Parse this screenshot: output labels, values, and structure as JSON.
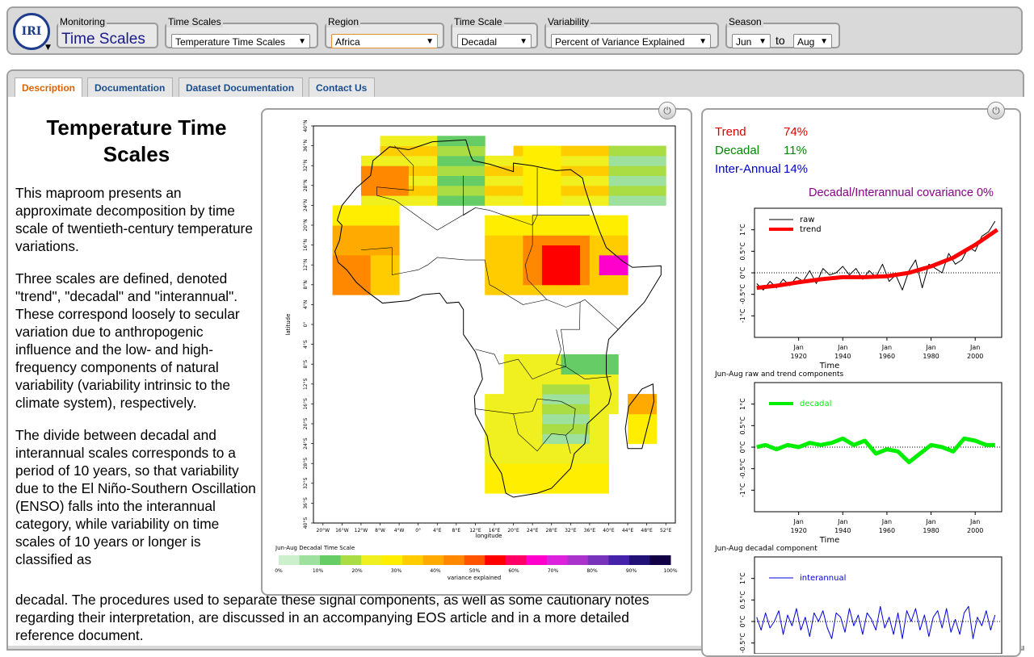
{
  "topbar": {
    "logo_text": "IRI",
    "monitoring": {
      "label": "Monitoring",
      "value": "Time Scales"
    },
    "timescales": {
      "label": "Time Scales",
      "value": "Temperature Time Scales"
    },
    "region": {
      "label": "Region",
      "value": "Africa"
    },
    "timescale": {
      "label": "Time Scale",
      "value": "Decadal"
    },
    "variability": {
      "label": "Variability",
      "value": "Percent of Variance Explained"
    },
    "season": {
      "label": "Season",
      "from": "Jun",
      "to_text": "to",
      "to": "Aug"
    }
  },
  "tabs": [
    "Description",
    "Documentation",
    "Dataset Documentation",
    "Contact Us"
  ],
  "description": {
    "title": "Temperature Time Scales",
    "p1": "This maproom presents an approximate decomposition by time scale of twentieth-century temperature variations.",
    "p2": "Three scales are defined, denoted \"trend\", \"decadal\" and \"interannual\". These correspond loosely to secular variation due to anthropogenic influence and the low- and high-frequency components of natural variability (variability intrinsic to the climate system), respectively.",
    "p3": "The divide between decadal and interannual scales corresponds to a period of 10 years, so that variability due to the El Niño-Southern Oscillation (ENSO) falls into the interannual category, while variability on time scales of 10 years or longer is classified as",
    "p3b": "decadal. The procedures used to separate these signal components, as well as some cautionary notes regarding their interpretation, are discussed in an accompanying EOS article and in a more detailed reference document."
  },
  "map": {
    "ylabel": "latitude",
    "xlabel": "longitude",
    "lat_ticks": [
      "40°N",
      "36°N",
      "32°N",
      "28°N",
      "24°N",
      "20°N",
      "16°N",
      "12°N",
      "8°N",
      "4°N",
      "0°",
      "4°S",
      "8°S",
      "12°S",
      "16°S",
      "20°S",
      "24°S",
      "28°S",
      "32°S",
      "36°S",
      "40°S"
    ],
    "lon_ticks": [
      "20°W",
      "16°W",
      "12°W",
      "8°W",
      "4°W",
      "0°",
      "4°E",
      "8°E",
      "12°E",
      "16°E",
      "20°E",
      "24°E",
      "28°E",
      "32°E",
      "36°E",
      "40°E",
      "44°E",
      "48°E",
      "52°E"
    ],
    "colorbar_title": "Jun-Aug Decadal Time Scale",
    "colorbar_ticks": [
      "0%",
      "10%",
      "20%",
      "30%",
      "40%",
      "50%",
      "60%",
      "70%",
      "80%",
      "90%",
      "100%"
    ],
    "colorbar_label": "variance explained",
    "colors": [
      "#ccf0cc",
      "#9ee09e",
      "#66cc66",
      "#aadd44",
      "#f0f020",
      "#ffee00",
      "#ffcc00",
      "#ffaa00",
      "#ff8800",
      "#ff5500",
      "#ff0000",
      "#ff0066",
      "#ff00cc",
      "#dd22dd",
      "#aa33cc",
      "#7733bb",
      "#4422aa",
      "#221177",
      "#110044"
    ]
  },
  "stats": {
    "trend": {
      "label": "Trend",
      "value": "74%",
      "color": "#e00000"
    },
    "decadal": {
      "label": "Decadal",
      "value": "11%",
      "color": "#008800"
    },
    "interannual": {
      "label": "Inter-Annual",
      "value": "14%",
      "color": "#0000cc"
    },
    "covariance": "Decadal/Interannual covariance 0%",
    "covariance_color": "#880088"
  },
  "chart_data": [
    {
      "type": "line",
      "title": "Jun-Aug  raw and trend components",
      "xlabel": "Time",
      "ylabel": "",
      "xticks": [
        "Jan\n1920",
        "Jan\n1940",
        "Jan\n1960",
        "Jan\n1980",
        "Jan\n2000"
      ],
      "yticks": [
        "-1°C",
        "-0.5°C",
        "0°C",
        "0.5°C",
        "1°C"
      ],
      "ylim": [
        -1.5,
        1.5
      ],
      "xlim": [
        1900,
        2012
      ],
      "series": [
        {
          "name": "raw",
          "color": "#000000",
          "x": [
            1901,
            1904,
            1907,
            1910,
            1913,
            1916,
            1919,
            1922,
            1925,
            1928,
            1931,
            1934,
            1937,
            1940,
            1943,
            1946,
            1949,
            1952,
            1955,
            1958,
            1961,
            1964,
            1967,
            1970,
            1973,
            1976,
            1979,
            1982,
            1985,
            1988,
            1991,
            1994,
            1997,
            2000,
            2003,
            2006,
            2009
          ],
          "values": [
            -0.25,
            -0.4,
            -0.2,
            -0.35,
            -0.15,
            -0.3,
            -0.1,
            -0.2,
            0.05,
            -0.25,
            0.1,
            -0.05,
            0.0,
            0.15,
            -0.05,
            0.1,
            -0.15,
            0.05,
            -0.1,
            0.2,
            -0.2,
            -0.05,
            -0.4,
            0.05,
            0.3,
            -0.35,
            0.2,
            0.1,
            0.0,
            0.45,
            0.2,
            0.3,
            0.6,
            0.5,
            0.85,
            0.95,
            1.2
          ]
        },
        {
          "name": "trend",
          "color": "#ff0000",
          "x": [
            1901,
            1910,
            1920,
            1930,
            1940,
            1950,
            1960,
            1970,
            1980,
            1990,
            2000,
            2010
          ],
          "values": [
            -0.35,
            -0.3,
            -0.22,
            -0.15,
            -0.1,
            -0.1,
            -0.08,
            0.0,
            0.15,
            0.35,
            0.65,
            1.0
          ]
        }
      ]
    },
    {
      "type": "line",
      "title": "Jun-Aug decadal component",
      "xlabel": "Time",
      "ylabel": "",
      "xticks": [
        "Jan\n1920",
        "Jan\n1940",
        "Jan\n1960",
        "Jan\n1980",
        "Jan\n2000"
      ],
      "yticks": [
        "-1°C",
        "-0.5°C",
        "0°C",
        "0.5°C",
        "1°C"
      ],
      "ylim": [
        -1.5,
        1.5
      ],
      "xlim": [
        1900,
        2012
      ],
      "series": [
        {
          "name": "decadal",
          "color": "#00ee00",
          "x": [
            1901,
            1905,
            1910,
            1915,
            1920,
            1925,
            1930,
            1935,
            1940,
            1945,
            1950,
            1955,
            1960,
            1965,
            1970,
            1975,
            1980,
            1985,
            1990,
            1995,
            2000,
            2005,
            2009
          ],
          "values": [
            0.0,
            0.05,
            -0.05,
            0.05,
            0.0,
            0.1,
            0.05,
            0.1,
            0.2,
            0.05,
            0.15,
            -0.15,
            -0.05,
            -0.1,
            -0.35,
            -0.15,
            0.05,
            0.0,
            -0.1,
            0.2,
            0.15,
            0.05,
            0.05
          ]
        }
      ]
    },
    {
      "type": "line",
      "title": "",
      "xlabel": "",
      "ylabel": "",
      "yticks": [
        "-0.5°C",
        "0°C",
        "0.5°C",
        "1°C"
      ],
      "ylim": [
        -1.5,
        1.5
      ],
      "xlim": [
        1900,
        2012
      ],
      "series": [
        {
          "name": "interannual",
          "color": "#0000dd",
          "x": [
            1901,
            1903,
            1905,
            1907,
            1909,
            1911,
            1913,
            1915,
            1917,
            1919,
            1921,
            1923,
            1925,
            1927,
            1929,
            1931,
            1933,
            1935,
            1937,
            1939,
            1941,
            1943,
            1945,
            1947,
            1949,
            1951,
            1953,
            1955,
            1957,
            1959,
            1961,
            1963,
            1965,
            1967,
            1969,
            1971,
            1973,
            1975,
            1977,
            1979,
            1981,
            1983,
            1985,
            1987,
            1989,
            1991,
            1993,
            1995,
            1997,
            1999,
            2001,
            2003,
            2005,
            2007,
            2009
          ],
          "values": [
            0.1,
            -0.2,
            0.2,
            -0.15,
            0.0,
            0.25,
            -0.3,
            0.15,
            -0.1,
            0.3,
            -0.2,
            0.1,
            -0.35,
            0.2,
            0.0,
            0.25,
            -0.15,
            -0.4,
            0.2,
            0.1,
            -0.25,
            0.3,
            -0.1,
            0.15,
            -0.3,
            0.2,
            0.05,
            -0.2,
            0.35,
            -0.15,
            0.1,
            -0.3,
            0.2,
            -0.4,
            0.25,
            0.0,
            0.3,
            -0.2,
            0.15,
            -0.35,
            0.1,
            0.25,
            -0.15,
            0.3,
            -0.25,
            0.05,
            -0.3,
            0.2,
            0.35,
            -0.4,
            0.1,
            -0.1,
            0.25,
            -0.2,
            0.15
          ]
        }
      ]
    }
  ]
}
